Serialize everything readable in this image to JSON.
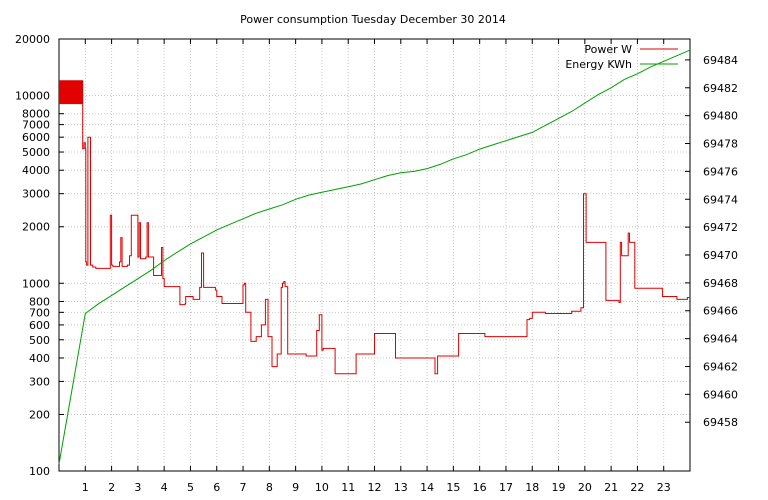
{
  "chart_data": {
    "type": "line",
    "title": "Power consumption Tuesday December 30 2014",
    "xlabel": "",
    "ylabel": "",
    "y2label": "",
    "xlim": [
      0,
      24
    ],
    "ylim": [
      100,
      20000
    ],
    "yscale": "log",
    "y2lim": [
      69454.5,
      69485.5
    ],
    "grid": true,
    "legend_position": "top-right",
    "x_ticks": [
      "1",
      "2",
      "3",
      "4",
      "5",
      "6",
      "7",
      "8",
      "9",
      "10",
      "11",
      "12",
      "13",
      "14",
      "15",
      "16",
      "17",
      "18",
      "19",
      "20",
      "21",
      "22",
      "23"
    ],
    "y_ticks": [
      "100",
      "200",
      "300",
      "400",
      "500",
      "600",
      "700",
      "800",
      "1000",
      "2000",
      "3000",
      "4000",
      "5000",
      "6000",
      "7000",
      "8000",
      "10000",
      "20000"
    ],
    "y2_ticks": [
      "69458",
      "69460",
      "69462",
      "69464",
      "69466",
      "69468",
      "69470",
      "69472",
      "69474",
      "69476",
      "69478",
      "69480",
      "69482",
      "69484"
    ],
    "series": [
      {
        "name": "Power W",
        "axis": "y",
        "color": "#e00000",
        "x": [
          0,
          0.9,
          0.9,
          0.95,
          1.0,
          1.02,
          1.05,
          1.1,
          1.2,
          1.28,
          1.35,
          1.36,
          1.4,
          1.42,
          1.9,
          1.95,
          2.0,
          2.05,
          2.3,
          2.35,
          2.4,
          2.6,
          2.68,
          2.75,
          3.0,
          3.05,
          3.1,
          3.3,
          3.35,
          3.4,
          3.6,
          3.9,
          3.95,
          4.0,
          4.5,
          4.6,
          4.75,
          4.8,
          4.82,
          5.1,
          5.35,
          5.42,
          5.5,
          5.95,
          6.0,
          6.2,
          6.9,
          7.0,
          7.05,
          7.1,
          7.3,
          7.5,
          7.7,
          7.85,
          7.95,
          8.1,
          8.3,
          8.45,
          8.5,
          8.55,
          8.6,
          8.7,
          9.4,
          9.8,
          9.9,
          10.0,
          10.05,
          10.5,
          11.3,
          12.0,
          12.8,
          14.2,
          14.3,
          14.4,
          15.2,
          16.2,
          17.5,
          17.8,
          17.9,
          18.0,
          18.5,
          19.5,
          19.85,
          19.95,
          20.05,
          20.8,
          21.3,
          21.35,
          21.4,
          21.65,
          21.7,
          21.9,
          22.0,
          22.95,
          23.5,
          23.9,
          24.0
        ],
        "y": [
          12000,
          12000,
          5200,
          5600,
          5200,
          1300,
          1250,
          6000,
          1250,
          1220,
          1220,
          1220,
          1200,
          1200,
          1200,
          2300,
          1250,
          1230,
          1300,
          1750,
          1230,
          1250,
          1400,
          2300,
          1380,
          2100,
          1350,
          1380,
          2100,
          1380,
          1100,
          1550,
          1060,
          960,
          960,
          770,
          770,
          780,
          850,
          820,
          950,
          1450,
          950,
          920,
          850,
          780,
          780,
          980,
          1000,
          700,
          490,
          520,
          600,
          820,
          520,
          360,
          420,
          950,
          1000,
          1020,
          960,
          420,
          410,
          560,
          680,
          440,
          450,
          330,
          420,
          540,
          400,
          400,
          330,
          410,
          540,
          520,
          520,
          640,
          650,
          700,
          690,
          710,
          740,
          3000,
          1650,
          810,
          790,
          1650,
          1400,
          1850,
          1650,
          940,
          940,
          850,
          820,
          840,
          840
        ]
      },
      {
        "name": "Energy KWh",
        "axis": "y2",
        "color": "#00a000",
        "x": [
          0,
          1.0,
          1.5,
          2.0,
          2.5,
          3.0,
          3.5,
          4.0,
          4.5,
          5.0,
          5.5,
          6.0,
          6.5,
          7.0,
          7.5,
          8.0,
          8.5,
          9.0,
          9.5,
          10.0,
          10.5,
          11.0,
          11.5,
          12.0,
          12.5,
          13.0,
          13.5,
          14.0,
          14.5,
          15.0,
          15.5,
          16.0,
          16.5,
          17.0,
          17.5,
          18.0,
          18.5,
          19.0,
          19.5,
          20.0,
          20.5,
          21.0,
          21.5,
          22.0,
          22.5,
          23.0,
          23.5,
          24.0
        ],
        "y": [
          69455.0,
          69465.8,
          69466.5,
          69467.1,
          69467.7,
          69468.3,
          69468.9,
          69469.6,
          69470.2,
          69470.8,
          69471.3,
          69471.8,
          69472.2,
          69472.6,
          69473.0,
          69473.3,
          69473.6,
          69474.0,
          69474.3,
          69474.5,
          69474.7,
          69474.9,
          69475.1,
          69475.4,
          69475.7,
          69475.9,
          69476.0,
          69476.2,
          69476.5,
          69476.9,
          69477.2,
          69477.6,
          69477.9,
          69478.2,
          69478.5,
          69478.8,
          69479.3,
          69479.8,
          69480.3,
          69480.9,
          69481.5,
          69482.0,
          69482.6,
          69483.0,
          69483.5,
          69483.9,
          69484.3,
          69484.7
        ]
      }
    ]
  }
}
